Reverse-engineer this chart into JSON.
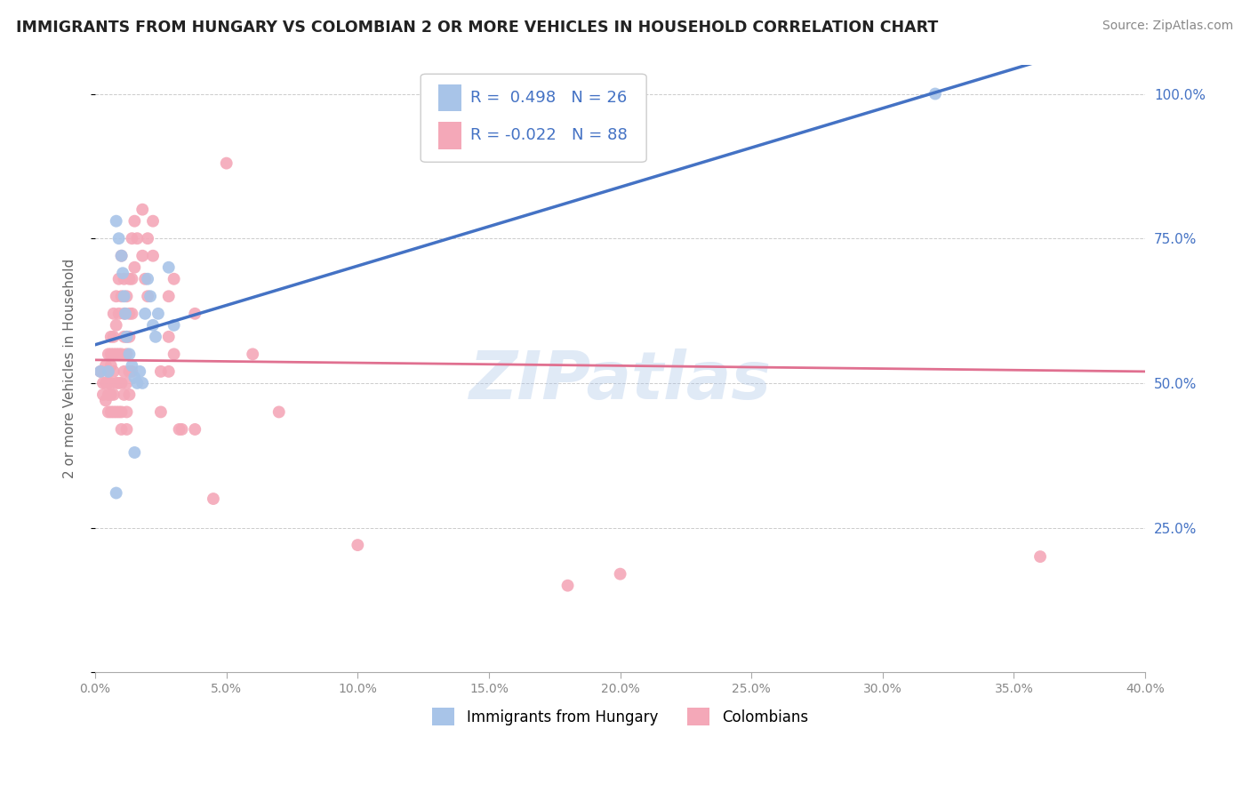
{
  "title": "IMMIGRANTS FROM HUNGARY VS COLOMBIAN 2 OR MORE VEHICLES IN HOUSEHOLD CORRELATION CHART",
  "source": "Source: ZipAtlas.com",
  "ylabel": "2 or more Vehicles in Household",
  "xmin": 0.0,
  "xmax": 40.0,
  "ymin": 0.0,
  "ymax": 105.0,
  "yticks": [
    0.0,
    25.0,
    50.0,
    75.0,
    100.0
  ],
  "ytick_labels_right": [
    "",
    "25.0%",
    "50.0%",
    "75.0%",
    "100.0%"
  ],
  "watermark": "ZIPatlas",
  "legend_r_hungary": "0.498",
  "legend_n_hungary": "26",
  "legend_r_colombian": "-0.022",
  "legend_n_colombian": "88",
  "hungary_color": "#a8c4e8",
  "colombian_color": "#f4a8b8",
  "hungary_line_color": "#4472c4",
  "colombian_line_color": "#e07090",
  "hungary_scatter_x": [
    0.5,
    0.8,
    0.9,
    1.0,
    1.05,
    1.1,
    1.15,
    1.2,
    1.3,
    1.4,
    1.5,
    1.6,
    1.7,
    1.8,
    1.9,
    2.0,
    2.1,
    2.2,
    2.3,
    2.4,
    2.8,
    3.0,
    1.5,
    0.8,
    0.2,
    32.0
  ],
  "hungary_scatter_y": [
    52,
    78,
    75,
    72,
    69,
    65,
    62,
    58,
    55,
    53,
    51,
    50,
    52,
    50,
    62,
    68,
    65,
    60,
    58,
    62,
    70,
    60,
    38,
    31,
    52,
    100
  ],
  "colombian_scatter_x": [
    0.2,
    0.3,
    0.3,
    0.4,
    0.4,
    0.4,
    0.5,
    0.5,
    0.5,
    0.5,
    0.5,
    0.6,
    0.6,
    0.6,
    0.6,
    0.6,
    0.6,
    0.7,
    0.7,
    0.7,
    0.7,
    0.7,
    0.7,
    0.8,
    0.8,
    0.8,
    0.8,
    0.8,
    0.9,
    0.9,
    0.9,
    0.9,
    0.9,
    1.0,
    1.0,
    1.0,
    1.0,
    1.0,
    1.0,
    1.1,
    1.1,
    1.1,
    1.1,
    1.1,
    1.2,
    1.2,
    1.2,
    1.2,
    1.2,
    1.2,
    1.3,
    1.3,
    1.3,
    1.3,
    1.3,
    1.4,
    1.4,
    1.4,
    1.4,
    1.5,
    1.5,
    1.6,
    1.8,
    1.8,
    1.9,
    2.0,
    2.0,
    2.2,
    2.2,
    2.5,
    2.5,
    2.8,
    2.8,
    2.8,
    3.0,
    3.0,
    3.2,
    3.3,
    3.8,
    3.8,
    4.5,
    5.0,
    6.0,
    7.0,
    10.0,
    18.0,
    20.0,
    36.0
  ],
  "colombian_scatter_y": [
    52,
    50,
    48,
    53,
    50,
    47,
    55,
    52,
    50,
    48,
    45,
    58,
    55,
    53,
    50,
    48,
    45,
    62,
    58,
    55,
    52,
    48,
    45,
    65,
    60,
    55,
    50,
    45,
    68,
    62,
    55,
    50,
    45,
    72,
    65,
    55,
    50,
    45,
    42,
    68,
    62,
    58,
    52,
    48,
    65,
    58,
    55,
    50,
    45,
    42,
    68,
    62,
    58,
    52,
    48,
    75,
    68,
    62,
    52,
    78,
    70,
    75,
    80,
    72,
    68,
    75,
    65,
    78,
    72,
    52,
    45,
    65,
    58,
    52,
    68,
    55,
    42,
    42,
    62,
    42,
    30,
    88,
    55,
    45,
    22,
    15,
    17,
    20
  ]
}
